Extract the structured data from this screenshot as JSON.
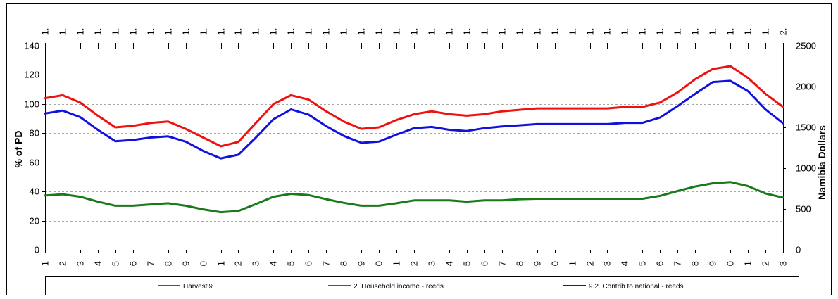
{
  "chart_data": {
    "type": "line",
    "x_labels": [
      "1",
      "2",
      "3",
      "4",
      "5",
      "6",
      "7",
      "8",
      "9",
      "0",
      "1",
      "2",
      "3",
      "4",
      "5",
      "6",
      "7",
      "8",
      "9",
      "0",
      "1",
      "2",
      "3",
      "4",
      "5",
      "6",
      "7",
      "8",
      "9",
      "0",
      "1",
      "2",
      "3",
      "4",
      "5",
      "6",
      "7",
      "8",
      "9",
      "0",
      "1",
      "2",
      "3"
    ],
    "top_labels": [
      "1.",
      "1.",
      "1.",
      "1.",
      "1.",
      "1.",
      "1.",
      "1.",
      "1.",
      "1.",
      "1.",
      "1.",
      "1.",
      "1.",
      "1.",
      "1.",
      "1.",
      "1.",
      "1.",
      "1.",
      "1.",
      "1.",
      "1.",
      "1.",
      "1.",
      "1.",
      "1.",
      "1.",
      "1.",
      "1.",
      "1.",
      "1.",
      "1.",
      "1.",
      "1.",
      "1.",
      "1.",
      "1.",
      "1.",
      "1.",
      "1.",
      "1.",
      "2."
    ],
    "ylabel": "% of PD",
    "y2label": "Namibia Dollars",
    "ylim": [
      0,
      140
    ],
    "y_ticks": [
      0,
      20,
      40,
      60,
      80,
      100,
      120,
      140
    ],
    "y2lim": [
      0,
      2500
    ],
    "y2_ticks": [
      0,
      500,
      1000,
      1500,
      2000,
      2500
    ],
    "grid": true,
    "legend_position": "bottom",
    "series": [
      {
        "name": "Harvest%",
        "color": "#ee1111",
        "axis": "left",
        "values": [
          104,
          106,
          101,
          92,
          84,
          85,
          87,
          88,
          83,
          77,
          71,
          74,
          87,
          100,
          106,
          103,
          95,
          88,
          83,
          84,
          89,
          93,
          95,
          93,
          92,
          93,
          95,
          96,
          97,
          97,
          97,
          97,
          97,
          98,
          98,
          101,
          108,
          117,
          124,
          126,
          118,
          107,
          98
        ]
      },
      {
        "name": "2. Household income - reeds",
        "color": "#1a7a1a",
        "axis": "right",
        "values": [
          665,
          680,
          650,
          590,
          540,
          540,
          555,
          570,
          540,
          495,
          460,
          475,
          560,
          650,
          685,
          670,
          620,
          575,
          540,
          540,
          570,
          605,
          605,
          605,
          590,
          605,
          605,
          620,
          625,
          625,
          625,
          625,
          625,
          625,
          625,
          660,
          720,
          775,
          815,
          830,
          780,
          690,
          640
        ]
      },
      {
        "name": "9.2. Contrib to national - reeds",
        "color": "#1111dd",
        "axis": "right",
        "values": [
          1670,
          1705,
          1625,
          1470,
          1330,
          1345,
          1375,
          1390,
          1325,
          1210,
          1120,
          1165,
          1375,
          1600,
          1720,
          1655,
          1515,
          1395,
          1310,
          1325,
          1410,
          1490,
          1505,
          1470,
          1455,
          1490,
          1510,
          1525,
          1540,
          1540,
          1540,
          1540,
          1540,
          1555,
          1555,
          1620,
          1760,
          1910,
          2055,
          2070,
          1945,
          1720,
          1550
        ]
      }
    ]
  }
}
